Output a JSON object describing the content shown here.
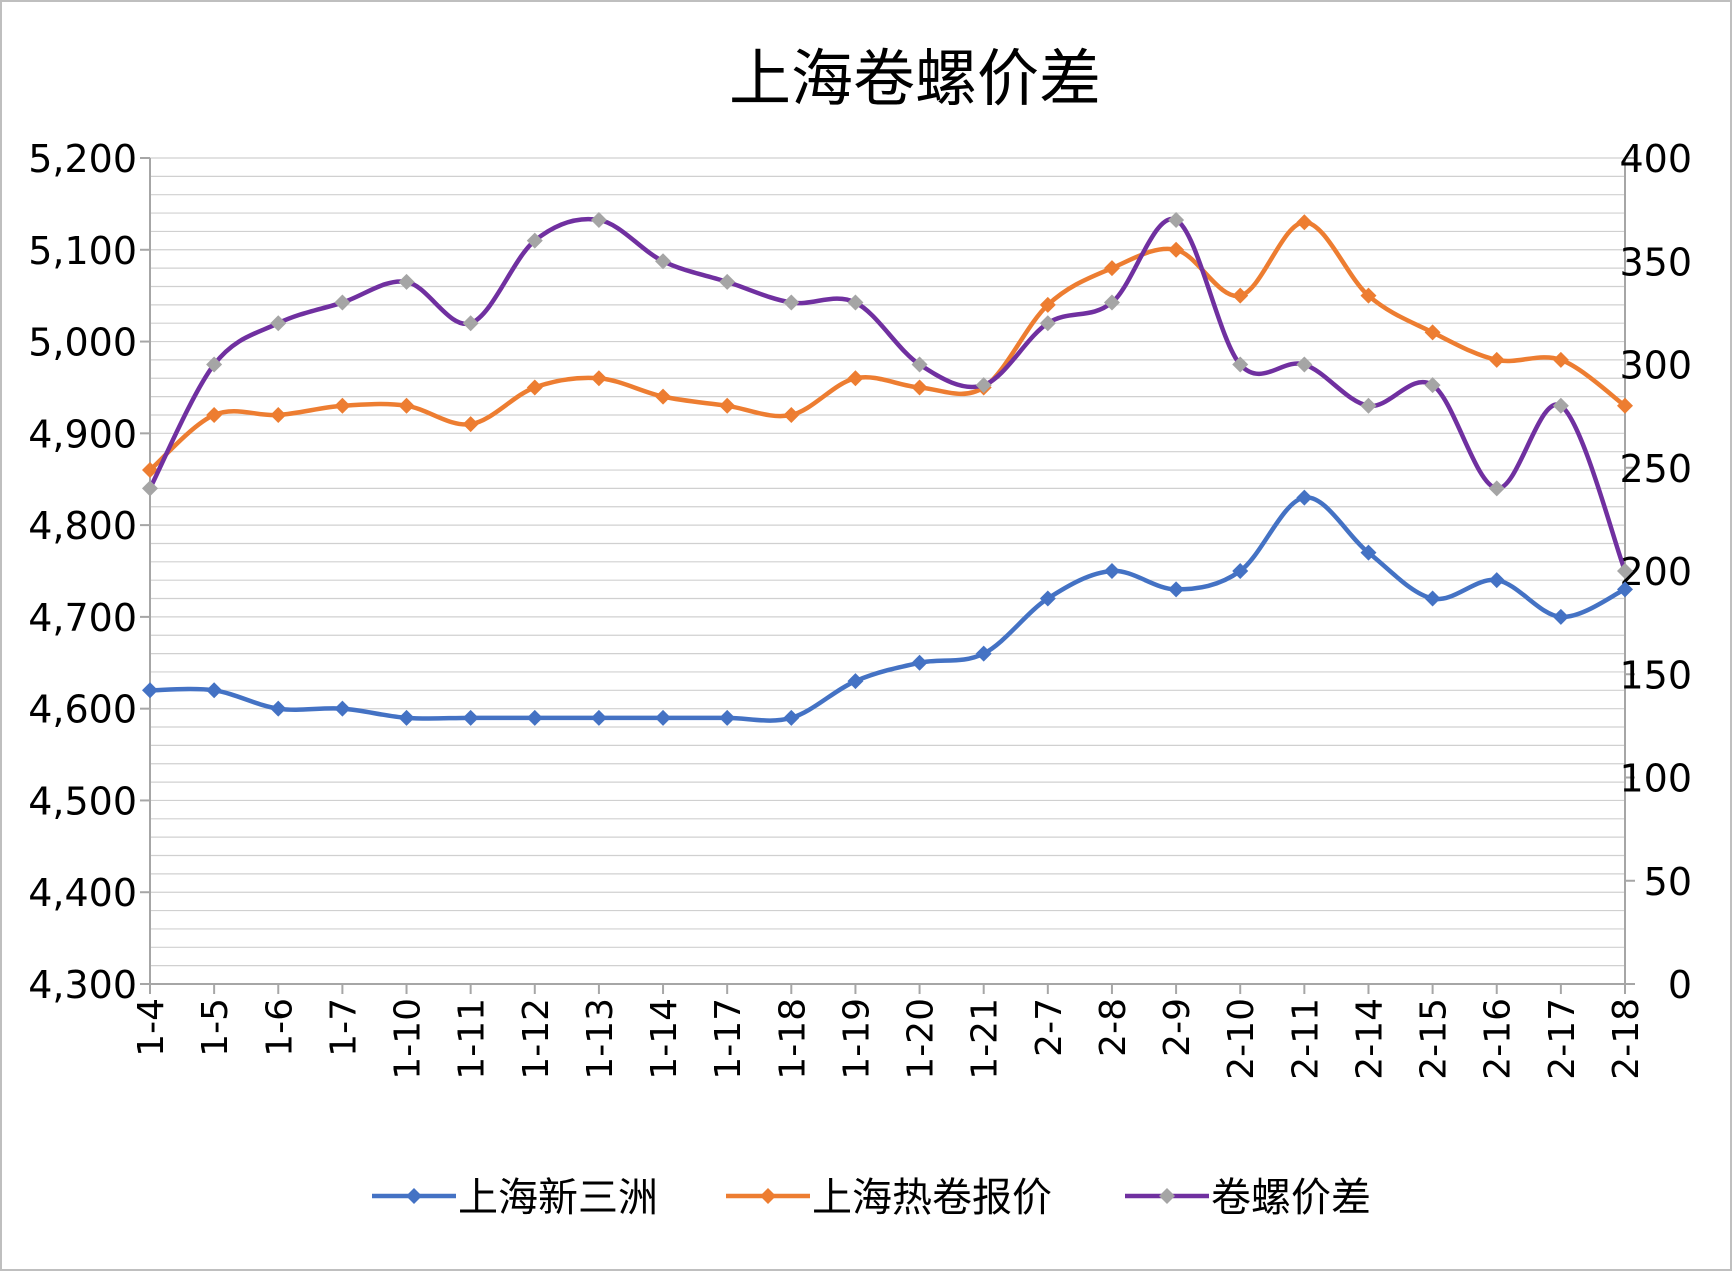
{
  "chart_data": {
    "type": "line",
    "title": "上海卷螺价差",
    "categories": [
      "1-4",
      "1-5",
      "1-6",
      "1-7",
      "1-10",
      "1-11",
      "1-12",
      "1-13",
      "1-14",
      "1-17",
      "1-18",
      "1-19",
      "1-20",
      "1-21",
      "2-7",
      "2-8",
      "2-9",
      "2-10",
      "2-11",
      "2-14",
      "2-15",
      "2-16",
      "2-17",
      "2-18"
    ],
    "y_left": {
      "min": 4300,
      "max": 5200,
      "step": 100,
      "ticks": [
        "4,300",
        "4,400",
        "4,500",
        "4,600",
        "4,700",
        "4,800",
        "4,900",
        "5,000",
        "5,100",
        "5,200"
      ]
    },
    "y_right": {
      "min": 0,
      "max": 400,
      "step": 50,
      "ticks": [
        "0",
        "50",
        "100",
        "150",
        "200",
        "250",
        "300",
        "350",
        "400"
      ]
    },
    "grid": true,
    "smooth": true,
    "legend_position": "bottom",
    "series": [
      {
        "name": "上海新三洲",
        "axis": "left",
        "color": "#4472C4",
        "marker_color": "#4472C4",
        "values": [
          4620,
          4620,
          4600,
          4600,
          4590,
          4590,
          4590,
          4590,
          4590,
          4590,
          4590,
          4630,
          4650,
          4660,
          4720,
          4750,
          4730,
          4750,
          4830,
          4770,
          4720,
          4740,
          4700,
          4730
        ]
      },
      {
        "name": "上海热卷报价",
        "axis": "left",
        "color": "#ED7D31",
        "marker_color": "#ED7D31",
        "values": [
          4860,
          4920,
          4920,
          4930,
          4930,
          4910,
          4950,
          4960,
          4940,
          4930,
          4920,
          4960,
          4950,
          4950,
          5040,
          5080,
          5100,
          5050,
          5130,
          5050,
          5010,
          4980,
          4980,
          4930
        ]
      },
      {
        "name": "卷螺价差",
        "axis": "right",
        "color": "#7030A0",
        "marker_color": "#A5A5A5",
        "values": [
          240,
          300,
          320,
          330,
          340,
          320,
          360,
          370,
          350,
          340,
          330,
          330,
          300,
          290,
          320,
          330,
          370,
          300,
          300,
          280,
          290,
          240,
          280,
          200
        ]
      }
    ]
  }
}
